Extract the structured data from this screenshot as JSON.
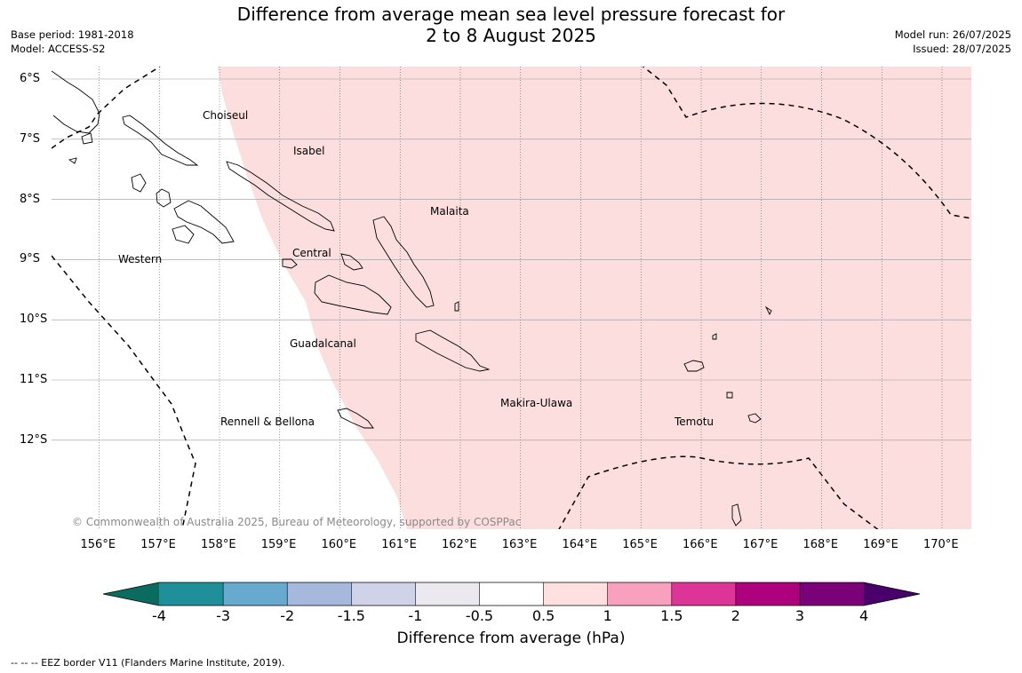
{
  "title_line1": "Difference from average mean sea level pressure forecast for",
  "title_line2": "2 to 8 August 2025",
  "base_period": "Base period: 1981-2018",
  "model": "Model: ACCESS-S2",
  "model_run": "Model run: 26/07/2025",
  "issued": "Issued: 28/07/2025",
  "latitudes": [
    "6°S",
    "7°S",
    "8°S",
    "9°S",
    "10°S",
    "11°S",
    "12°S"
  ],
  "longitudes": [
    "156°E",
    "157°E",
    "158°E",
    "159°E",
    "160°E",
    "161°E",
    "162°E",
    "163°E",
    "164°E",
    "165°E",
    "166°E",
    "167°E",
    "168°E",
    "169°E",
    "170°E"
  ],
  "regions": [
    "Choiseul",
    "Isabel",
    "Malaita",
    "Western",
    "Central",
    "Guadalcanal",
    "Makira-Ulawa",
    "Rennell & Bellona",
    "Temotu"
  ],
  "copyright": "© Commonwealth of Australia 2025, Bureau of Meteorology, supported by COSPPac",
  "colorbar": {
    "ticks": [
      "-4",
      "-3",
      "-2",
      "-1.5",
      "-1",
      "-0.5",
      "0.5",
      "1",
      "1.5",
      "2",
      "3",
      "4"
    ],
    "colors": [
      "#0b6b5e",
      "#1f9099",
      "#67a9cf",
      "#a6b9dc",
      "#cfd2e8",
      "#ebe9ef",
      "#ffffff",
      "#fde0df",
      "#f7a1be",
      "#dd3497",
      "#ae017e",
      "#7a0177",
      "#49006a"
    ],
    "title": "Difference from average (hPa)"
  },
  "field": {
    "area_fill": "#fcdede",
    "category": "0.5 to 1"
  },
  "footnote": "--  --  -- EEZ border V11 (Flanders Marine Institute, 2019)."
}
